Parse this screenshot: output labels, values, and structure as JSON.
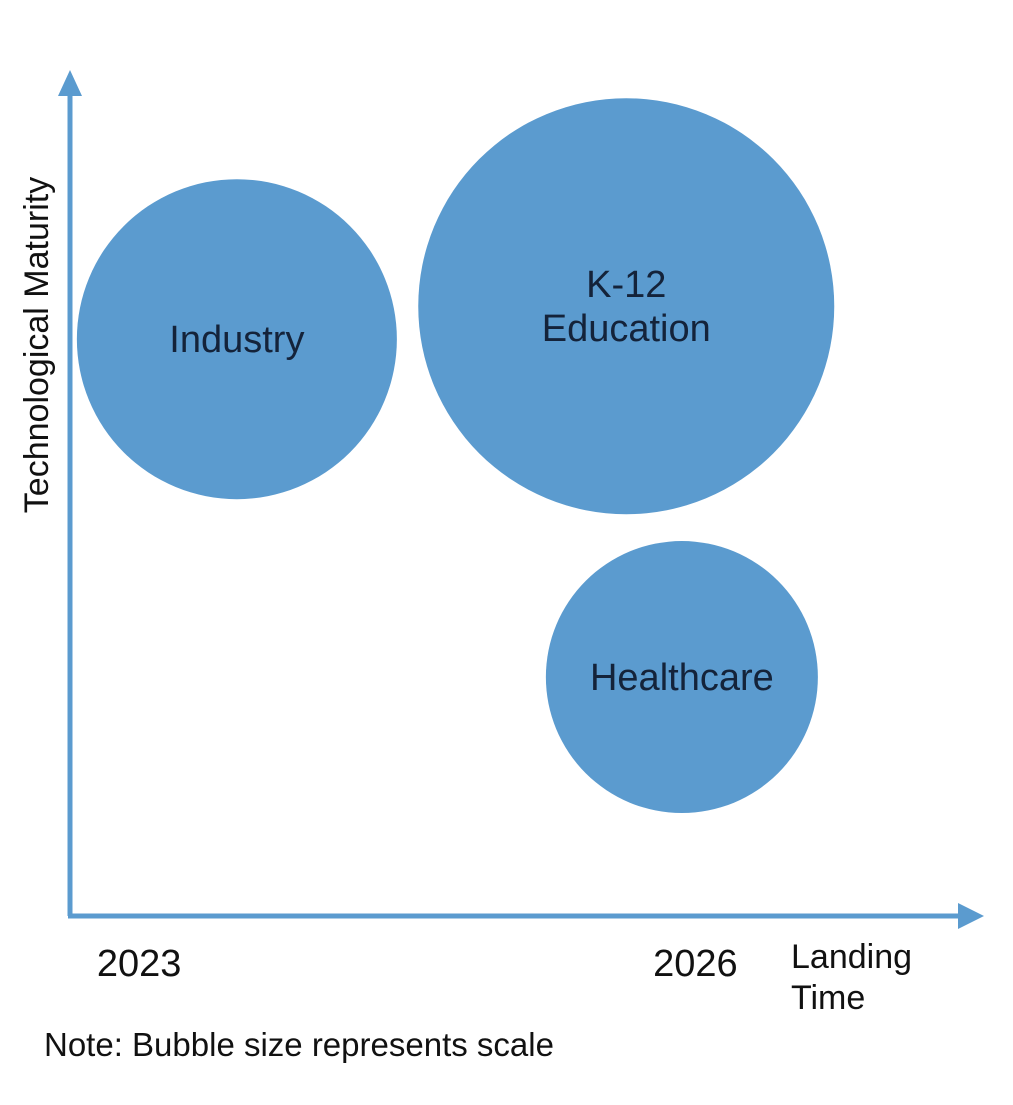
{
  "chart_data": {
    "type": "scatter",
    "xlabel": "Landing Time",
    "ylabel": "Technological Maturity",
    "xlim": [
      2022.6,
      2027.4
    ],
    "ylim": [
      0,
      10
    ],
    "x_ticks": [
      {
        "value": 2023,
        "label": "2023"
      },
      {
        "value": 2026,
        "label": "2026"
      }
    ],
    "grid": false,
    "legend": "none",
    "series": [
      {
        "points": [
          {
            "label": "Industry",
            "x": 2023.5,
            "y": 7.0,
            "size": 1.0
          },
          {
            "label": "K-12 Education",
            "x": 2025.6,
            "y": 7.4,
            "size": 1.3
          },
          {
            "label": "Healthcare",
            "x": 2025.9,
            "y": 2.9,
            "size": 0.85
          }
        ]
      }
    ],
    "annotations": [
      "Note: Bubble size represents scale"
    ]
  },
  "colors": {
    "bubble": "#5b9bcf",
    "axis": "#5b9bcf",
    "bubble_text": "#14233a"
  }
}
